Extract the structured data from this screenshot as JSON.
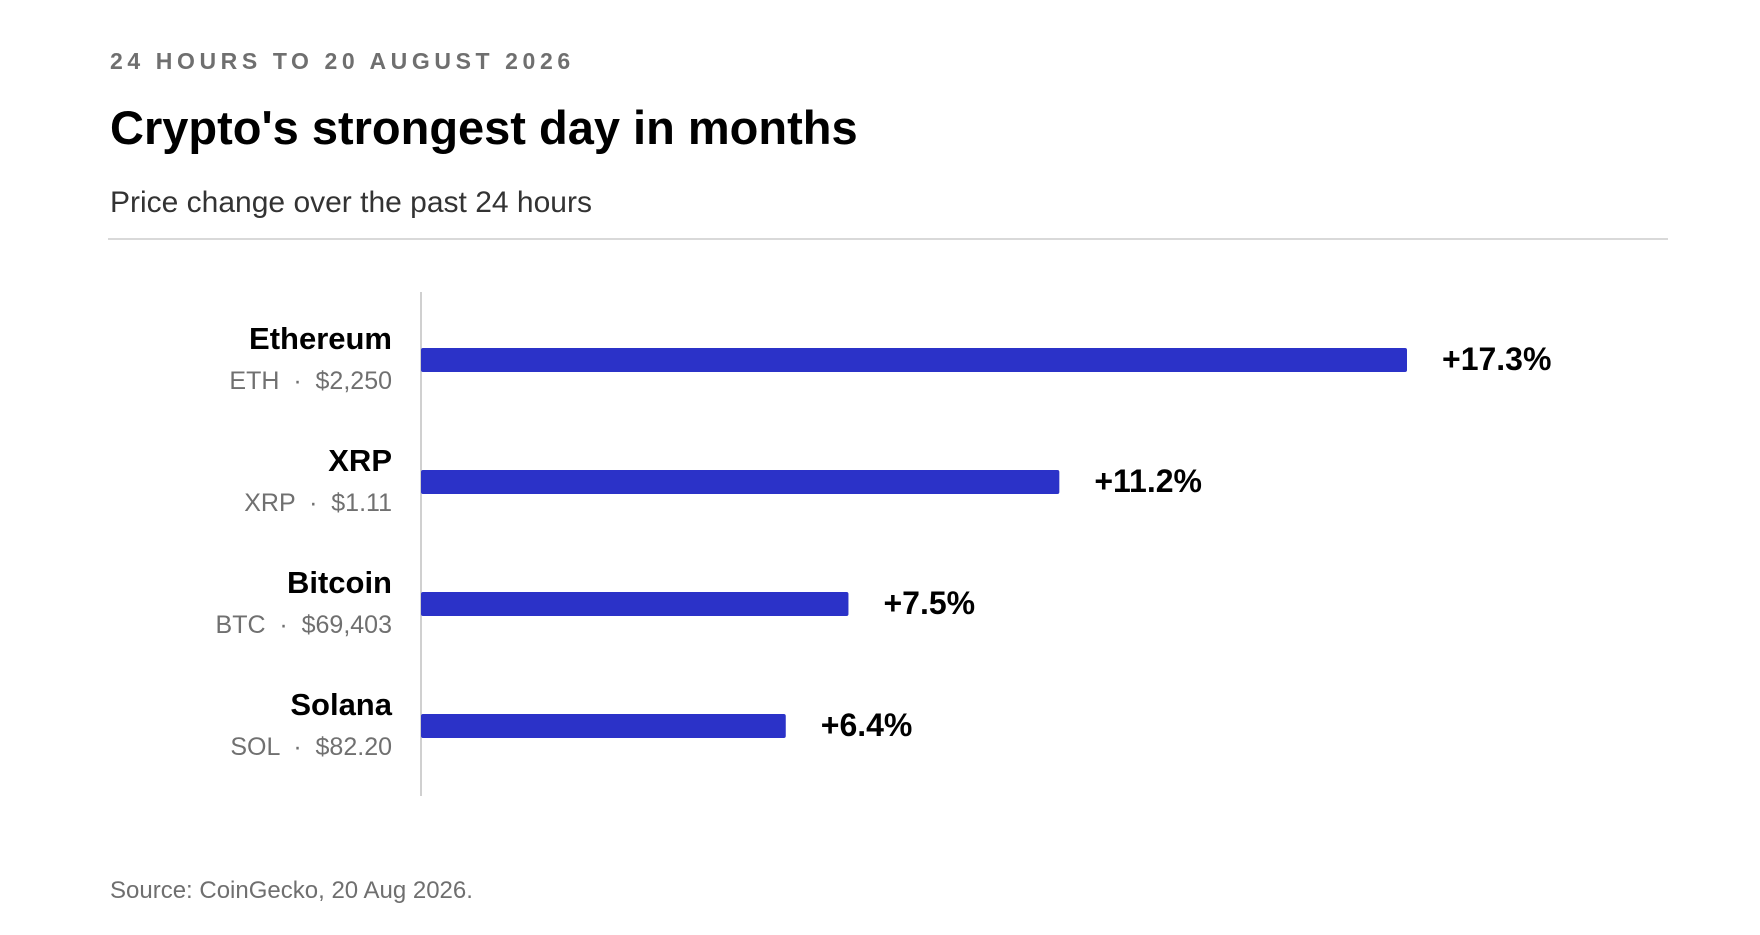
{
  "header": {
    "kicker": "24 HOURS TO 20 AUGUST 2026",
    "title": "Crypto's strongest day in months",
    "subtitle": "Price change over the past 24 hours"
  },
  "footer": {
    "source": "Source: CoinGecko, 20 Aug 2026."
  },
  "colors": {
    "bar": "#2b32c8",
    "axis": "#d0d0d0",
    "label": "#000000",
    "sublabel": "#707070"
  },
  "chart_data": {
    "type": "bar",
    "orientation": "horizontal",
    "grid": false,
    "xlim": [
      0,
      17.3
    ],
    "categories": [
      "Ethereum",
      "XRP",
      "Bitcoin",
      "Solana"
    ],
    "items": [
      {
        "name": "Ethereum",
        "ticker": "ETH",
        "price": "$2,250",
        "value": 17.3,
        "value_label": "+17.3%"
      },
      {
        "name": "XRP",
        "ticker": "XRP",
        "price": "$1.11",
        "value": 11.2,
        "value_label": "+11.2%"
      },
      {
        "name": "Bitcoin",
        "ticker": "BTC",
        "price": "$69,403",
        "value": 7.5,
        "value_label": "+7.5%"
      },
      {
        "name": "Solana",
        "ticker": "SOL",
        "price": "$82.20",
        "value": 6.4,
        "value_label": "+6.4%"
      }
    ],
    "values": [
      17.3,
      11.2,
      7.5,
      6.4
    ]
  }
}
